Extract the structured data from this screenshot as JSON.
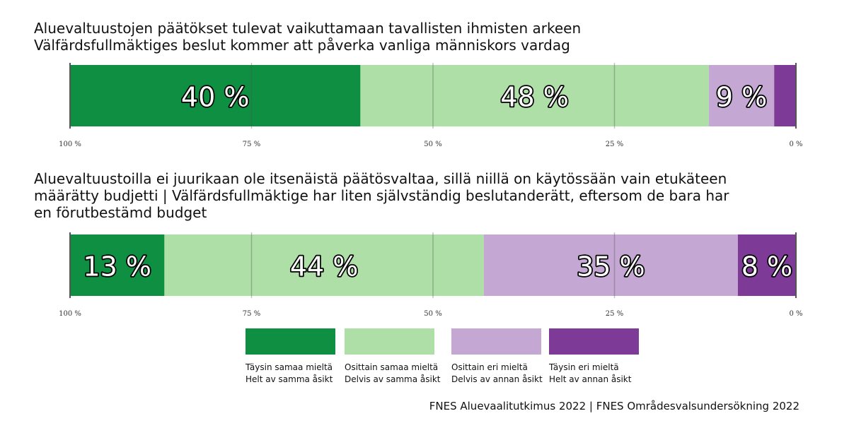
{
  "chart_data": [
    {
      "type": "bar",
      "orientation": "horizontal-stacked",
      "title_lines": [
        "Aluevaltuustojen päätökset tulevat vaikuttamaan tavallisten ihmisten arkeen",
        "Välfärdsfullmäktiges beslut kommer att påverka vanliga människors vardag"
      ],
      "values": [
        40,
        48,
        9,
        3
      ],
      "data_labels": [
        "40 %",
        "48 %",
        "9 %",
        ""
      ],
      "axis_ticks": [
        "100 %",
        "75 %",
        "50 %",
        "25 %",
        "0 %"
      ],
      "xlim": [
        100,
        0
      ],
      "grid": true
    },
    {
      "type": "bar",
      "orientation": "horizontal-stacked",
      "title_lines": [
        "Aluevaltuustoilla ei juurikaan ole itsenäistä päätösvaltaa, sillä niillä on käytössään vain etukäteen",
        "määrätty budjetti | Välfärdsfullmäktige har liten självständig beslutanderätt, eftersom de bara har",
        "en förutbestämd budget"
      ],
      "values": [
        13,
        44,
        35,
        8
      ],
      "data_labels": [
        "13 %",
        "44 %",
        "35 %",
        "8 %"
      ],
      "axis_ticks": [
        "100 %",
        "75 %",
        "50 %",
        "25 %",
        "0 %"
      ],
      "xlim": [
        100,
        0
      ],
      "grid": true
    }
  ],
  "legend": [
    {
      "color": "#0f8f41",
      "line1": "Täysin samaa mieltä",
      "line2": "Helt av samma åsikt"
    },
    {
      "color": "#addfa6",
      "line1": "Osittain samaa mieltä",
      "line2": "Delvis av samma åsikt"
    },
    {
      "color": "#c4a8d3",
      "line1": "Osittain eri mieltä",
      "line2": "Delvis av annan åsikt"
    },
    {
      "color": "#7d3a97",
      "line1": "Täysin eri mieltä",
      "line2": "Helt av annan åsikt"
    }
  ],
  "source": "FNES Aluevaalitutkimus 2022 | FNES Områdesvalsundersökning 2022"
}
